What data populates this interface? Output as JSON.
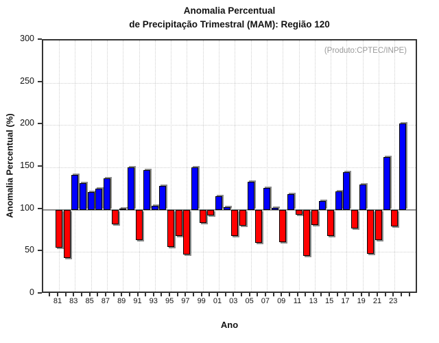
{
  "title": {
    "line1": "Anomalia Percentual",
    "line2": "de Precipitação Trimestral (MAM): Região 120"
  },
  "annotation": "(Produto:CPTEC/INPE)",
  "colors": {
    "positive_bar": "#0000ff",
    "negative_bar": "#ff0000",
    "bar_outline": "#000000",
    "bar_shadow": "#8c8c8c",
    "baseline": "#909090",
    "grid": "#cfcfcf",
    "axis": "#333333",
    "annotation_text": "#9a9a9a"
  },
  "chart_data": {
    "type": "bar",
    "title": "Anomalia Percentual de Precipitação Trimestral (MAM): Região 120",
    "xlabel": "Ano",
    "ylabel": "Anomalia Percentual (%)",
    "ylim": [
      0,
      300
    ],
    "yticks": [
      0,
      50,
      100,
      150,
      200,
      250,
      300
    ],
    "baseline": 100,
    "grid": "dotted, vertical every 2 years, horizontal every 50",
    "legend": "none",
    "categories": [
      "81",
      "82",
      "83",
      "84",
      "85",
      "86",
      "87",
      "88",
      "89",
      "90",
      "91",
      "92",
      "93",
      "94",
      "95",
      "96",
      "97",
      "98",
      "99",
      "00",
      "01",
      "02",
      "03",
      "04",
      "05",
      "06",
      "07",
      "08",
      "09",
      "10",
      "11",
      "12",
      "13",
      "14",
      "15",
      "16",
      "17",
      "18",
      "19",
      "20",
      "21",
      "22",
      "23",
      "24"
    ],
    "x_tick_labels": [
      "81",
      "83",
      "85",
      "87",
      "89",
      "91",
      "93",
      "95",
      "97",
      "99",
      "01",
      "03",
      "05",
      "07",
      "09",
      "11",
      "13",
      "15",
      "17",
      "19",
      "21",
      "23"
    ],
    "values": [
      55,
      43,
      141,
      131,
      121,
      125,
      137,
      83,
      101,
      150,
      64,
      147,
      105,
      128,
      56,
      69,
      47,
      150,
      84,
      93,
      116,
      103,
      69,
      81,
      133,
      61,
      126,
      102,
      62,
      118,
      94,
      45,
      82,
      110,
      69,
      122,
      144,
      78,
      130,
      48,
      64,
      162,
      80,
      202
    ]
  }
}
